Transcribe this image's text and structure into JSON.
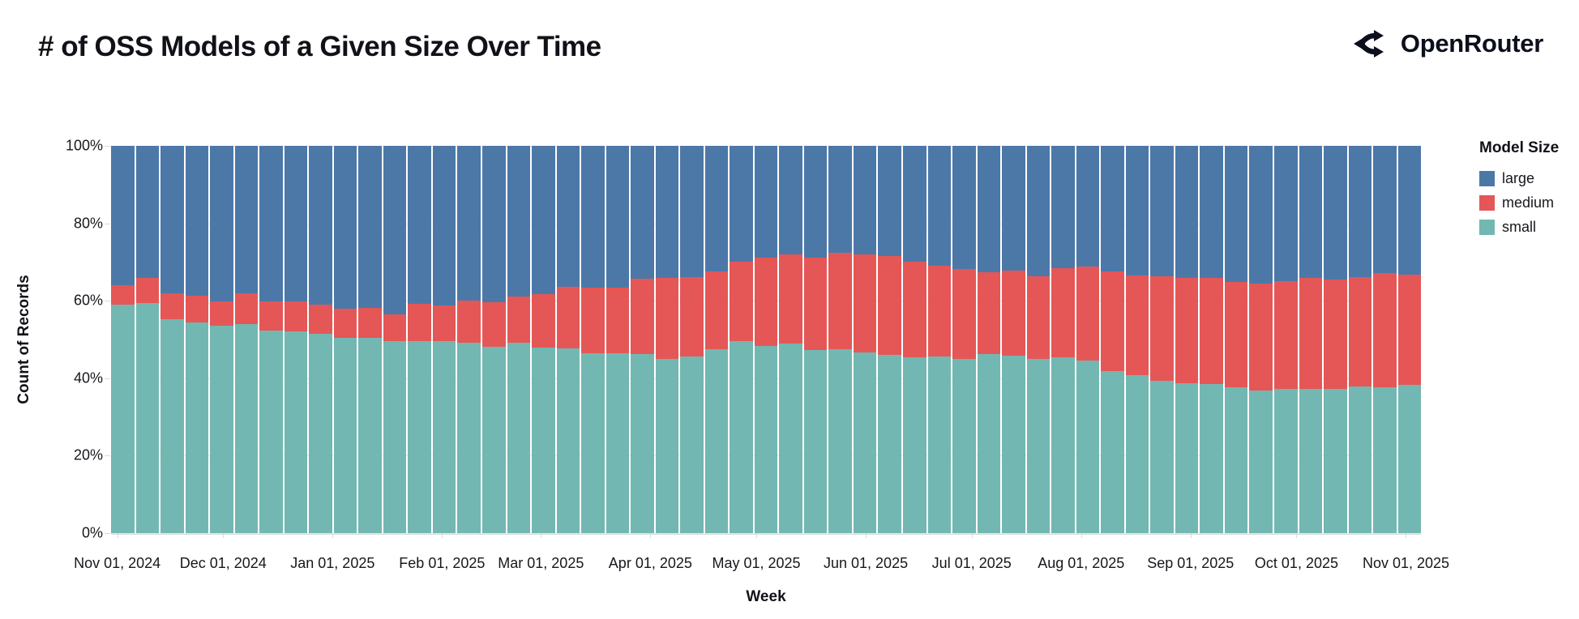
{
  "header": {
    "title": "# of OSS Models of a Given Size Over Time",
    "brand": "OpenRouter"
  },
  "legend": {
    "title": "Model Size",
    "items": [
      {
        "label": "large",
        "color": "#4c78a8"
      },
      {
        "label": "medium",
        "color": "#e45756"
      },
      {
        "label": "small",
        "color": "#72b7b2"
      }
    ]
  },
  "chart_data": {
    "type": "bar",
    "stacked": true,
    "normalized_percent": true,
    "title": "# of OSS Models of a Given Size Over Time",
    "xlabel": "Week",
    "ylabel": "Count of Records",
    "legend_title": "Model Size",
    "legend_position": "right",
    "grid": true,
    "ylim": [
      0,
      100
    ],
    "y_ticks": [
      "0%",
      "20%",
      "40%",
      "60%",
      "80%",
      "100%"
    ],
    "series_order_top_to_bottom": [
      "large",
      "medium",
      "small"
    ],
    "colors": {
      "large": "#4c78a8",
      "medium": "#e45756",
      "small": "#72b7b2"
    },
    "x_month_ticks": [
      {
        "label": "Nov 01, 2024",
        "days": 0
      },
      {
        "label": "Dec 01, 2024",
        "days": 30
      },
      {
        "label": "Jan 01, 2025",
        "days": 61
      },
      {
        "label": "Feb 01, 2025",
        "days": 92
      },
      {
        "label": "Mar 01, 2025",
        "days": 120
      },
      {
        "label": "Apr 01, 2025",
        "days": 151
      },
      {
        "label": "May 01, 2025",
        "days": 181
      },
      {
        "label": "Jun 01, 2025",
        "days": 212
      },
      {
        "label": "Jul 01, 2025",
        "days": 242
      },
      {
        "label": "Aug 01, 2025",
        "days": 273
      },
      {
        "label": "Sep 01, 2025",
        "days": 304
      },
      {
        "label": "Oct 01, 2025",
        "days": 334
      },
      {
        "label": "Nov 01, 2025",
        "days": 365
      }
    ],
    "weeks": [
      {
        "date": "Nov 01, 2024",
        "small": 59.1,
        "medium": 4.9,
        "large": 36.0
      },
      {
        "date": "Nov 08, 2024",
        "small": 59.4,
        "medium": 6.4,
        "large": 34.2
      },
      {
        "date": "Nov 15, 2024",
        "small": 55.3,
        "medium": 6.7,
        "large": 38.0
      },
      {
        "date": "Nov 22, 2024",
        "small": 54.3,
        "medium": 6.9,
        "large": 38.8
      },
      {
        "date": "Nov 29, 2024",
        "small": 53.5,
        "medium": 6.3,
        "large": 40.2
      },
      {
        "date": "Dec 06, 2024",
        "small": 54.0,
        "medium": 7.9,
        "large": 38.1
      },
      {
        "date": "Dec 13, 2024",
        "small": 52.3,
        "medium": 7.5,
        "large": 40.2
      },
      {
        "date": "Dec 20, 2024",
        "small": 52.1,
        "medium": 7.7,
        "large": 40.2
      },
      {
        "date": "Dec 27, 2024",
        "small": 51.4,
        "medium": 7.5,
        "large": 41.1
      },
      {
        "date": "Jan 03, 2025",
        "small": 50.5,
        "medium": 7.5,
        "large": 42.0
      },
      {
        "date": "Jan 10, 2025",
        "small": 50.5,
        "medium": 7.7,
        "large": 41.8
      },
      {
        "date": "Jan 17, 2025",
        "small": 49.5,
        "medium": 7.0,
        "large": 43.5
      },
      {
        "date": "Jan 24, 2025",
        "small": 49.5,
        "medium": 9.8,
        "large": 40.7
      },
      {
        "date": "Jan 31, 2025",
        "small": 49.5,
        "medium": 9.3,
        "large": 41.2
      },
      {
        "date": "Feb 07, 2025",
        "small": 49.1,
        "medium": 11.0,
        "large": 39.9
      },
      {
        "date": "Feb 14, 2025",
        "small": 48.2,
        "medium": 11.4,
        "large": 40.4
      },
      {
        "date": "Feb 21, 2025",
        "small": 49.1,
        "medium": 12.0,
        "large": 38.9
      },
      {
        "date": "Feb 28, 2025",
        "small": 47.9,
        "medium": 13.8,
        "large": 38.3
      },
      {
        "date": "Mar 07, 2025",
        "small": 47.6,
        "medium": 15.9,
        "large": 36.5
      },
      {
        "date": "Mar 14, 2025",
        "small": 46.5,
        "medium": 16.8,
        "large": 36.7
      },
      {
        "date": "Mar 21, 2025",
        "small": 46.5,
        "medium": 16.8,
        "large": 36.7
      },
      {
        "date": "Mar 28, 2025",
        "small": 46.2,
        "medium": 19.4,
        "large": 34.4
      },
      {
        "date": "Apr 04, 2025",
        "small": 45.0,
        "medium": 20.8,
        "large": 34.2
      },
      {
        "date": "Apr 11, 2025",
        "small": 45.7,
        "medium": 20.4,
        "large": 33.9
      },
      {
        "date": "Apr 18, 2025",
        "small": 47.4,
        "medium": 20.2,
        "large": 32.4
      },
      {
        "date": "Apr 25, 2025",
        "small": 49.5,
        "medium": 20.5,
        "large": 30.0
      },
      {
        "date": "May 02, 2025",
        "small": 48.4,
        "medium": 22.8,
        "large": 28.8
      },
      {
        "date": "May 09, 2025",
        "small": 49.0,
        "medium": 22.9,
        "large": 28.1
      },
      {
        "date": "May 16, 2025",
        "small": 47.3,
        "medium": 23.9,
        "large": 28.8
      },
      {
        "date": "May 23, 2025",
        "small": 47.4,
        "medium": 24.9,
        "large": 27.7
      },
      {
        "date": "May 30, 2025",
        "small": 46.7,
        "medium": 25.2,
        "large": 28.1
      },
      {
        "date": "Jun 06, 2025",
        "small": 46.0,
        "medium": 25.6,
        "large": 28.4
      },
      {
        "date": "Jun 13, 2025",
        "small": 45.3,
        "medium": 24.7,
        "large": 30.0
      },
      {
        "date": "Jun 20, 2025",
        "small": 45.6,
        "medium": 23.5,
        "large": 30.9
      },
      {
        "date": "Jun 27, 2025",
        "small": 45.0,
        "medium": 23.3,
        "large": 31.7
      },
      {
        "date": "Jul 04, 2025",
        "small": 46.2,
        "medium": 21.2,
        "large": 32.6
      },
      {
        "date": "Jul 11, 2025",
        "small": 45.9,
        "medium": 21.8,
        "large": 32.3
      },
      {
        "date": "Jul 18, 2025",
        "small": 44.9,
        "medium": 21.4,
        "large": 33.7
      },
      {
        "date": "Jul 25, 2025",
        "small": 45.5,
        "medium": 22.9,
        "large": 31.6
      },
      {
        "date": "Aug 01, 2025",
        "small": 44.6,
        "medium": 24.2,
        "large": 31.2
      },
      {
        "date": "Aug 08, 2025",
        "small": 41.8,
        "medium": 25.8,
        "large": 32.4
      },
      {
        "date": "Aug 15, 2025",
        "small": 40.7,
        "medium": 25.8,
        "large": 33.5
      },
      {
        "date": "Aug 22, 2025",
        "small": 39.4,
        "medium": 26.9,
        "large": 33.7
      },
      {
        "date": "Aug 29, 2025",
        "small": 38.6,
        "medium": 27.3,
        "large": 34.1
      },
      {
        "date": "Sep 05, 2025",
        "small": 38.4,
        "medium": 27.5,
        "large": 34.1
      },
      {
        "date": "Sep 12, 2025",
        "small": 37.7,
        "medium": 27.2,
        "large": 35.1
      },
      {
        "date": "Sep 19, 2025",
        "small": 36.9,
        "medium": 27.5,
        "large": 35.6
      },
      {
        "date": "Sep 26, 2025",
        "small": 37.3,
        "medium": 27.7,
        "large": 35.0
      },
      {
        "date": "Oct 03, 2025",
        "small": 37.2,
        "medium": 28.7,
        "large": 34.1
      },
      {
        "date": "Oct 10, 2025",
        "small": 37.3,
        "medium": 28.1,
        "large": 34.6
      },
      {
        "date": "Oct 17, 2025",
        "small": 37.9,
        "medium": 28.2,
        "large": 33.9
      },
      {
        "date": "Oct 24, 2025",
        "small": 37.7,
        "medium": 29.5,
        "large": 32.8
      },
      {
        "date": "Oct 31, 2025",
        "small": 38.2,
        "medium": 28.6,
        "large": 33.2
      }
    ]
  }
}
